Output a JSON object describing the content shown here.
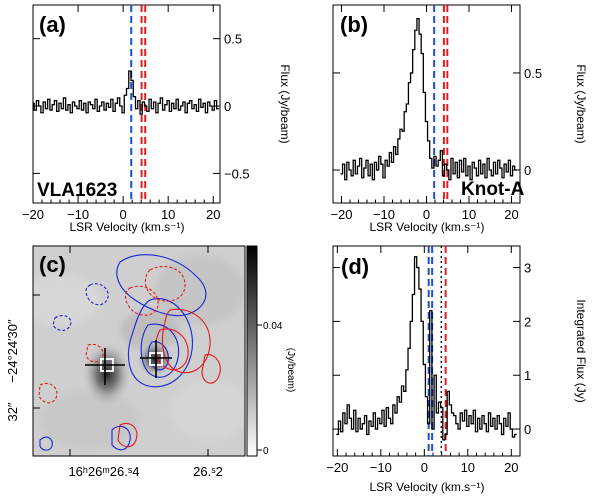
{
  "colors": {
    "blue_line": "#1f4fd6",
    "red_line": "#e02020",
    "blue_contour": "#1a23d8",
    "red_contour": "#e01c1c"
  },
  "chart_data": [
    {
      "panel": "a",
      "type": "line",
      "label": "(a)",
      "name": "VLA1623",
      "xlabel": "LSR Velocity (km.s⁻¹)",
      "ylabel": "Flux (Jy/beam)",
      "xlim": [
        -20,
        21.5
      ],
      "ylim": [
        -0.72,
        0.75
      ],
      "xticks": [
        -20,
        -10,
        0,
        10,
        20
      ],
      "xtick_labels": [
        "−20",
        "−10",
        "0",
        "10",
        "20"
      ],
      "yticks": [
        0.5,
        0,
        -0.5
      ],
      "ytick_labels": [
        "0.5",
        "0",
        "−0.5"
      ],
      "vlines": [
        {
          "x": 1.8,
          "color": "blue",
          "style": "dashed"
        },
        {
          "x": 4.1,
          "color": "red",
          "style": "dashed"
        },
        {
          "x": 4.9,
          "color": "red",
          "style": "dashed"
        }
      ],
      "x": [
        -20.0,
        -19.5,
        -19.0,
        -18.5,
        -18.0,
        -17.5,
        -17.0,
        -16.5,
        -16.0,
        -15.5,
        -15.0,
        -14.5,
        -14.0,
        -13.5,
        -13.0,
        -12.5,
        -12.0,
        -11.5,
        -11.0,
        -10.5,
        -10.0,
        -9.5,
        -9.0,
        -8.5,
        -8.0,
        -7.5,
        -7.0,
        -6.5,
        -6.0,
        -5.5,
        -5.0,
        -4.5,
        -4.0,
        -3.5,
        -3.0,
        -2.5,
        -2.0,
        -1.5,
        -1.0,
        -0.5,
        0.0,
        0.5,
        1.0,
        1.5,
        2.0,
        2.5,
        3.0,
        3.5,
        4.0,
        4.5,
        5.0,
        5.5,
        6.0,
        6.5,
        7.0,
        7.5,
        8.0,
        8.5,
        9.0,
        9.5,
        10.0,
        10.5,
        11.0,
        11.5,
        12.0,
        12.5,
        13.0,
        13.5,
        14.0,
        14.5,
        15.0,
        15.5,
        16.0,
        16.5,
        17.0,
        17.5,
        18.0,
        18.5,
        19.0,
        19.5,
        20.0,
        20.5,
        21.0
      ],
      "y": [
        0.02,
        -0.03,
        0.04,
        0.0,
        -0.05,
        0.03,
        -0.02,
        0.05,
        -0.03,
        0.01,
        0.04,
        -0.04,
        0.02,
        -0.02,
        0.06,
        -0.03,
        0.01,
        -0.05,
        0.03,
        0.0,
        -0.02,
        0.04,
        -0.03,
        0.02,
        -0.05,
        0.03,
        0.01,
        -0.02,
        0.05,
        -0.04,
        0.0,
        0.03,
        -0.03,
        0.02,
        -0.01,
        0.05,
        -0.04,
        0.02,
        0.06,
        0.0,
        -0.05,
        0.08,
        0.13,
        0.26,
        0.19,
        0.07,
        -0.02,
        0.04,
        -0.06,
        0.03,
        0.0,
        -0.04,
        0.05,
        -0.02,
        0.03,
        -0.05,
        0.02,
        0.06,
        -0.03,
        0.01,
        0.04,
        -0.04,
        0.02,
        -0.02,
        0.05,
        -0.03,
        0.0,
        0.03,
        -0.05,
        0.02,
        0.04,
        -0.02,
        0.01,
        -0.04,
        0.05,
        -0.01,
        0.02,
        -0.05,
        0.03,
        0.0,
        -0.03,
        0.04,
        -0.02
      ]
    },
    {
      "panel": "b",
      "type": "line",
      "label": "(b)",
      "name": "Knot-A",
      "xlabel": "LSR Velocity (km.s⁻¹)",
      "ylabel": "Flux (Jy/beam)",
      "xlim": [
        -22,
        22
      ],
      "ylim": [
        -0.17,
        0.85
      ],
      "xticks": [
        -20,
        -10,
        0,
        10,
        20
      ],
      "xtick_labels": [
        "−20",
        "−10",
        "0",
        "10",
        "20"
      ],
      "yticks": [
        0.5,
        0
      ],
      "ytick_labels": [
        "0.5",
        "0"
      ],
      "vlines": [
        {
          "x": 1.8,
          "color": "blue",
          "style": "dashed"
        },
        {
          "x": 4.1,
          "color": "red",
          "style": "dashed"
        },
        {
          "x": 4.9,
          "color": "red",
          "style": "dashed"
        }
      ],
      "x": [
        -20.0,
        -19.5,
        -19.0,
        -18.5,
        -18.0,
        -17.5,
        -17.0,
        -16.5,
        -16.0,
        -15.5,
        -15.0,
        -14.5,
        -14.0,
        -13.5,
        -13.0,
        -12.5,
        -12.0,
        -11.5,
        -11.0,
        -10.5,
        -10.0,
        -9.5,
        -9.0,
        -8.5,
        -8.0,
        -7.5,
        -7.0,
        -6.5,
        -6.0,
        -5.5,
        -5.0,
        -4.5,
        -4.0,
        -3.5,
        -3.0,
        -2.5,
        -2.0,
        -1.5,
        -1.0,
        -0.5,
        0.0,
        0.5,
        1.0,
        1.5,
        2.0,
        2.5,
        3.0,
        3.5,
        4.0,
        4.5,
        5.0,
        5.5,
        6.0,
        6.5,
        7.0,
        7.5,
        8.0,
        8.5,
        9.0,
        9.5,
        10.0,
        10.5,
        11.0,
        11.5,
        12.0,
        12.5,
        13.0,
        13.5,
        14.0,
        14.5,
        15.0,
        15.5,
        16.0,
        16.5,
        17.0,
        17.5,
        18.0,
        18.5,
        19.0,
        19.5,
        20.0,
        20.5,
        21.0
      ],
      "y": [
        -0.02,
        0.03,
        -0.05,
        0.04,
        0.0,
        -0.03,
        0.05,
        -0.02,
        0.02,
        0.06,
        -0.04,
        0.01,
        0.05,
        -0.03,
        0.03,
        -0.05,
        0.04,
        0.0,
        0.07,
        0.03,
        -0.04,
        0.05,
        0.02,
        0.09,
        0.04,
        0.12,
        0.08,
        0.16,
        0.21,
        0.2,
        0.3,
        0.34,
        0.45,
        0.5,
        0.62,
        0.72,
        0.78,
        0.7,
        0.6,
        0.4,
        0.25,
        0.15,
        0.06,
        0.01,
        0.07,
        0.02,
        0.05,
        0.1,
        -0.03,
        0.03,
        0.0,
        -0.05,
        0.06,
        -0.02,
        0.04,
        -0.04,
        0.05,
        -0.01,
        0.06,
        -0.03,
        0.02,
        -0.05,
        0.04,
        0.01,
        -0.03,
        0.05,
        -0.02,
        0.03,
        -0.04,
        0.06,
        0.0,
        -0.03,
        0.04,
        -0.02,
        0.05,
        0.01,
        -0.04,
        0.03,
        -0.01,
        0.05,
        -0.03,
        0.02,
        0.0
      ]
    },
    {
      "panel": "c",
      "type": "heatmap",
      "label": "(c)",
      "ylabel": "−24°24′30″",
      "ylabel2": "32″",
      "xtick_labels": [
        "16ʰ26ᵐ26.ˢ4",
        "26.ˢ2"
      ],
      "colorbar_title": "(Jy/beam)",
      "colorbar_ticks": [
        "0.04",
        "0"
      ],
      "colormap": "gray",
      "contours": [
        "blue",
        "red"
      ]
    },
    {
      "panel": "d",
      "type": "line",
      "label": "(d)",
      "xlabel": "LSR Velocity (km.s⁻¹)",
      "ylabel": "Integrated Flux (Jy)",
      "xlim": [
        -21,
        22
      ],
      "ylim": [
        -0.5,
        3.4
      ],
      "xticks": [
        -20,
        -10,
        0,
        10,
        20
      ],
      "xtick_labels": [
        "−20",
        "−10",
        "0",
        "10",
        "20"
      ],
      "yticks": [
        3,
        2,
        1,
        0
      ],
      "ytick_labels": [
        "3",
        "2",
        "1",
        "0"
      ],
      "vlines": [
        {
          "x": 1.0,
          "color": "blue",
          "style": "dashed"
        },
        {
          "x": 1.8,
          "color": "blue",
          "style": "dashed"
        },
        {
          "x": 3.9,
          "color": "black",
          "style": "dotted"
        },
        {
          "x": 4.9,
          "color": "red",
          "style": "dashed"
        }
      ],
      "x": [
        -20.0,
        -19.5,
        -19.0,
        -18.5,
        -18.0,
        -17.5,
        -17.0,
        -16.5,
        -16.0,
        -15.5,
        -15.0,
        -14.5,
        -14.0,
        -13.5,
        -13.0,
        -12.5,
        -12.0,
        -11.5,
        -11.0,
        -10.5,
        -10.0,
        -9.5,
        -9.0,
        -8.5,
        -8.0,
        -7.5,
        -7.0,
        -6.5,
        -6.0,
        -5.5,
        -5.0,
        -4.5,
        -4.0,
        -3.5,
        -3.0,
        -2.5,
        -2.0,
        -1.5,
        -1.0,
        -0.5,
        0.0,
        0.5,
        1.0,
        1.5,
        2.0,
        2.5,
        3.0,
        3.5,
        4.0,
        4.5,
        5.0,
        5.5,
        6.0,
        6.5,
        7.0,
        7.5,
        8.0,
        8.5,
        9.0,
        9.5,
        10.0,
        10.5,
        11.0,
        11.5,
        12.0,
        12.5,
        13.0,
        13.5,
        14.0,
        14.5,
        15.0,
        15.5,
        16.0,
        16.5,
        17.0,
        17.5,
        18.0,
        18.5,
        19.0,
        19.5,
        20.0,
        20.5,
        21.0
      ],
      "y": [
        -0.1,
        0.15,
        -0.05,
        0.3,
        0.1,
        0.45,
        0.2,
        0.0,
        0.35,
        -0.05,
        0.2,
        0.0,
        0.1,
        0.25,
        -0.1,
        0.15,
        0.05,
        0.3,
        0.0,
        0.2,
        0.1,
        0.35,
        0.05,
        0.4,
        0.2,
        0.1,
        0.45,
        0.3,
        0.6,
        0.5,
        0.8,
        0.7,
        1.1,
        1.5,
        2.0,
        2.5,
        3.2,
        3.0,
        2.6,
        2.0,
        1.2,
        0.6,
        0.1,
        2.2,
        0.0,
        1.0,
        0.3,
        0.5,
        0.4,
        -0.2,
        -0.1,
        0.7,
        0.45,
        0.3,
        0.25,
        0.1,
        0.0,
        0.3,
        0.15,
        0.35,
        0.05,
        0.25,
        0.1,
        0.35,
        -0.05,
        0.2,
        0.0,
        0.25,
        0.1,
        -0.05,
        0.3,
        0.05,
        0.2,
        0.0,
        0.25,
        0.1,
        -0.1,
        0.2,
        0.05,
        0.3,
        0.0,
        -0.15,
        -0.1
      ]
    }
  ]
}
